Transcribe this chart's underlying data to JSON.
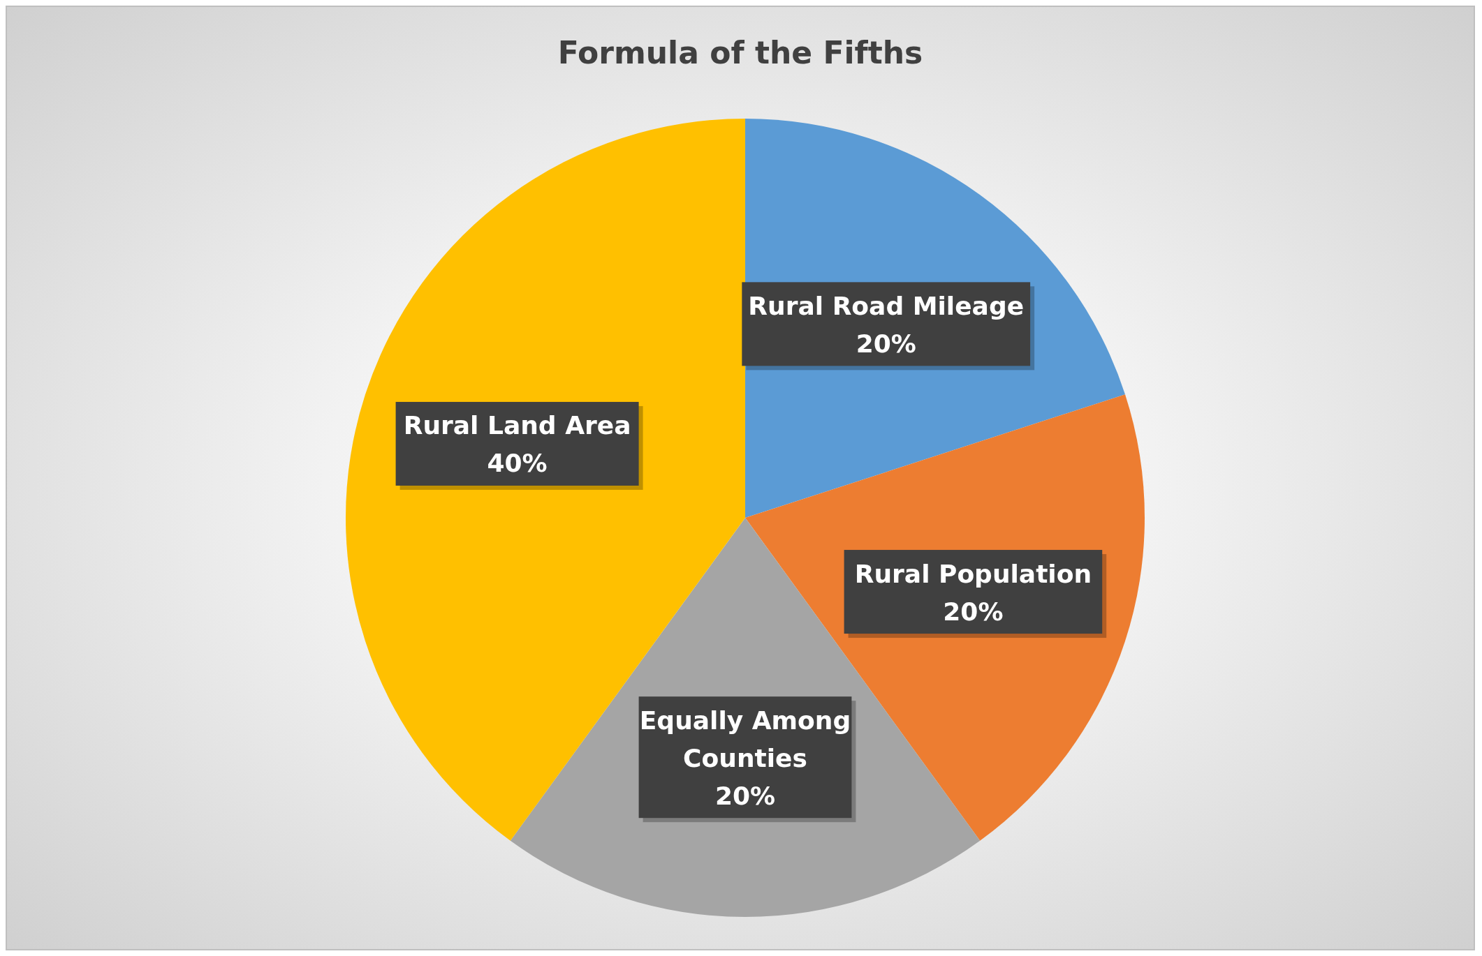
{
  "chart_data": {
    "type": "pie",
    "title": "Formula of the Fifths",
    "categories": [
      "Rural Road Mileage",
      "Rural Population",
      "Equally Among Counties",
      "Rural Land Area"
    ],
    "values": [
      20,
      20,
      20,
      40
    ],
    "colors": [
      "#5b9bd5",
      "#ed7d31",
      "#a5a5a5",
      "#ffc000"
    ],
    "value_labels": [
      "20%",
      "20%",
      "20%",
      "40%"
    ]
  }
}
